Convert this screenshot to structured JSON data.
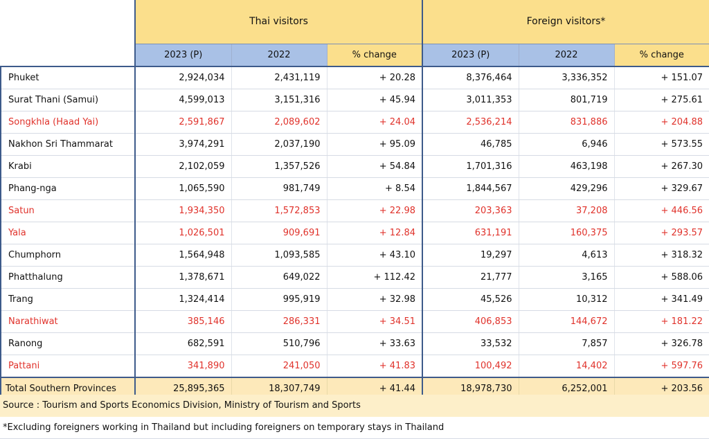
{
  "header": {
    "group_thai": "Thai visitors",
    "group_foreign": "Foreign visitors*",
    "col_2023": "2023 (P)",
    "col_2022": "2022",
    "col_change": "% change"
  },
  "rows": [
    {
      "name": "Phuket",
      "thai_2023": "2,924,034",
      "thai_2022": "2,431,119",
      "thai_change": "+ 20.28",
      "for_2023": "8,376,464",
      "for_2022": "3,336,352",
      "for_change": "+ 151.07",
      "highlight": false
    },
    {
      "name": "Surat Thani (Samui)",
      "thai_2023": "4,599,013",
      "thai_2022": "3,151,316",
      "thai_change": "+ 45.94",
      "for_2023": "3,011,353",
      "for_2022": "801,719",
      "for_change": "+ 275.61",
      "highlight": false
    },
    {
      "name": "Songkhla (Haad Yai)",
      "thai_2023": "2,591,867",
      "thai_2022": "2,089,602",
      "thai_change": "+ 24.04",
      "for_2023": "2,536,214",
      "for_2022": "831,886",
      "for_change": "+ 204.88",
      "highlight": true
    },
    {
      "name": "Nakhon Sri Thammarat",
      "thai_2023": "3,974,291",
      "thai_2022": "2,037,190",
      "thai_change": "+ 95.09",
      "for_2023": "46,785",
      "for_2022": "6,946",
      "for_change": "+ 573.55",
      "highlight": false
    },
    {
      "name": "Krabi",
      "thai_2023": "2,102,059",
      "thai_2022": "1,357,526",
      "thai_change": "+ 54.84",
      "for_2023": "1,701,316",
      "for_2022": "463,198",
      "for_change": "+ 267.30",
      "highlight": false
    },
    {
      "name": "Phang-nga",
      "thai_2023": "1,065,590",
      "thai_2022": "981,749",
      "thai_change": "+ 8.54",
      "for_2023": "1,844,567",
      "for_2022": "429,296",
      "for_change": "+ 329.67",
      "highlight": false
    },
    {
      "name": "Satun",
      "thai_2023": "1,934,350",
      "thai_2022": "1,572,853",
      "thai_change": "+ 22.98",
      "for_2023": "203,363",
      "for_2022": "37,208",
      "for_change": "+ 446.56",
      "highlight": true
    },
    {
      "name": "Yala",
      "thai_2023": "1,026,501",
      "thai_2022": "909,691",
      "thai_change": "+ 12.84",
      "for_2023": "631,191",
      "for_2022": "160,375",
      "for_change": "+ 293.57",
      "highlight": true
    },
    {
      "name": "Chumphorn",
      "thai_2023": "1,564,948",
      "thai_2022": "1,093,585",
      "thai_change": "+ 43.10",
      "for_2023": "19,297",
      "for_2022": "4,613",
      "for_change": "+ 318.32",
      "highlight": false
    },
    {
      "name": "Phatthalung",
      "thai_2023": "1,378,671",
      "thai_2022": "649,022",
      "thai_change": "+ 112.42",
      "for_2023": "21,777",
      "for_2022": "3,165",
      "for_change": "+ 588.06",
      "highlight": false
    },
    {
      "name": "Trang",
      "thai_2023": "1,324,414",
      "thai_2022": "995,919",
      "thai_change": "+ 32.98",
      "for_2023": "45,526",
      "for_2022": "10,312",
      "for_change": "+ 341.49",
      "highlight": false
    },
    {
      "name": "Narathiwat",
      "thai_2023": "385,146",
      "thai_2022": "286,331",
      "thai_change": "+ 34.51",
      "for_2023": "406,853",
      "for_2022": "144,672",
      "for_change": "+ 181.22",
      "highlight": true
    },
    {
      "name": "Ranong",
      "thai_2023": "682,591",
      "thai_2022": "510,796",
      "thai_change": "+ 33.63",
      "for_2023": "33,532",
      "for_2022": "7,857",
      "for_change": "+ 326.78",
      "highlight": false
    },
    {
      "name": "Pattani",
      "thai_2023": "341,890",
      "thai_2022": "241,050",
      "thai_change": "+ 41.83",
      "for_2023": "100,492",
      "for_2022": "14,402",
      "for_change": "+ 597.76",
      "highlight": true
    }
  ],
  "total": {
    "name": "Total Southern Provinces",
    "thai_2023": "25,895,365",
    "thai_2022": "18,307,749",
    "thai_change": "+ 41.44",
    "for_2023": "18,978,730",
    "for_2022": "6,252,001",
    "for_change": "+ 203.56"
  },
  "source": "Source : Tourism and Sports Economics Division, Ministry of Tourism and Sports",
  "footnote": "*Excluding foreigners working in Thailand but including foreigners on temporary stays in Thailand",
  "colors": {
    "highlight_text": "#e0322b",
    "header_yellow": "#fbdf8c",
    "header_blue": "#a9c1e6",
    "total_bg": "#fde9ba",
    "border": "#3d5a8a"
  }
}
